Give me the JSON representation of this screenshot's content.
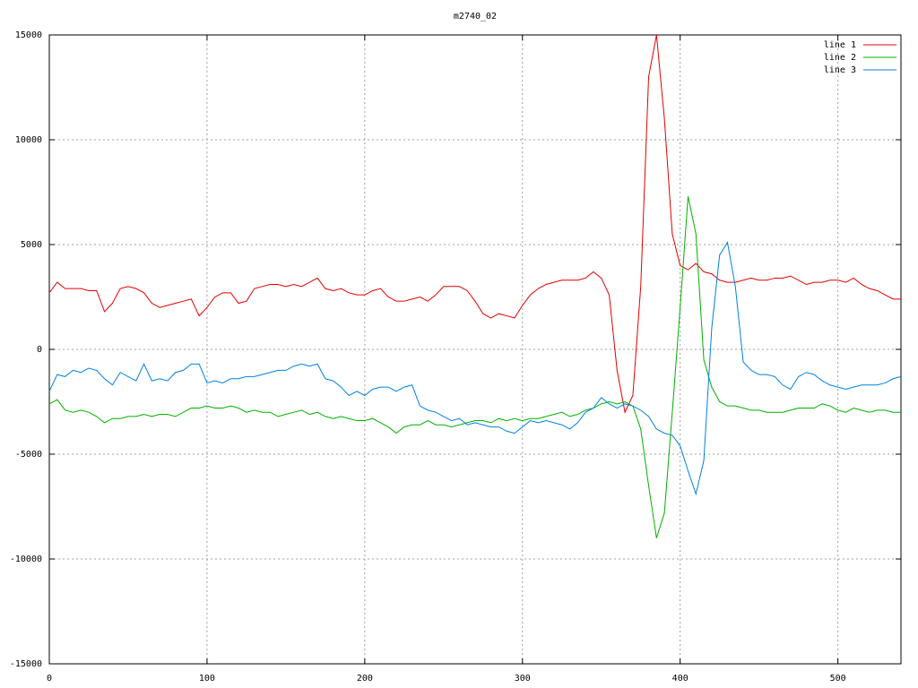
{
  "chart_data": {
    "type": "line",
    "title": "m2740_02",
    "x": [
      0,
      5,
      10,
      15,
      20,
      25,
      30,
      35,
      40,
      45,
      50,
      55,
      60,
      65,
      70,
      75,
      80,
      85,
      90,
      95,
      100,
      105,
      110,
      115,
      120,
      125,
      130,
      135,
      140,
      145,
      150,
      155,
      160,
      165,
      170,
      175,
      180,
      185,
      190,
      195,
      200,
      205,
      210,
      215,
      220,
      225,
      230,
      235,
      240,
      245,
      250,
      255,
      260,
      265,
      270,
      275,
      280,
      285,
      290,
      295,
      300,
      305,
      310,
      315,
      320,
      325,
      330,
      335,
      340,
      345,
      350,
      355,
      360,
      365,
      370,
      375,
      380,
      385,
      390,
      395,
      400,
      405,
      410,
      415,
      420,
      425,
      430,
      435,
      440,
      445,
      450,
      455,
      460,
      465,
      470,
      475,
      480,
      485,
      490,
      495,
      500,
      505,
      510,
      515,
      520,
      525,
      530,
      535,
      540
    ],
    "series": [
      {
        "name": "line 1",
        "color": "#e00000",
        "values": [
          2700,
          3200,
          2900,
          2900,
          2900,
          2800,
          2800,
          1800,
          2200,
          2900,
          3000,
          2900,
          2700,
          2200,
          2000,
          2100,
          2200,
          2300,
          2400,
          1600,
          2000,
          2500,
          2700,
          2700,
          2200,
          2300,
          2900,
          3000,
          3100,
          3100,
          3000,
          3100,
          3000,
          3200,
          3400,
          2900,
          2800,
          2900,
          2700,
          2600,
          2600,
          2800,
          2900,
          2500,
          2300,
          2300,
          2400,
          2500,
          2300,
          2600,
          3000,
          3000,
          3000,
          2800,
          2300,
          1700,
          1500,
          1700,
          1600,
          1500,
          2100,
          2600,
          2900,
          3100,
          3200,
          3300,
          3300,
          3300,
          3400,
          3700,
          3400,
          2600,
          -1000,
          -3000,
          -2200,
          3000,
          13000,
          15000,
          11000,
          5500,
          4000,
          3800,
          4100,
          3700,
          3600,
          3300,
          3200,
          3200,
          3300,
          3400,
          3300,
          3300,
          3400,
          3400,
          3500,
          3300,
          3100,
          3200,
          3200,
          3300,
          3300,
          3200,
          3400,
          3100,
          2900,
          2800,
          2600,
          2400,
          2400
        ]
      },
      {
        "name": "line 2",
        "color": "#00b000",
        "values": [
          -2600,
          -2400,
          -2900,
          -3000,
          -2900,
          -3000,
          -3200,
          -3500,
          -3300,
          -3300,
          -3200,
          -3200,
          -3100,
          -3200,
          -3100,
          -3100,
          -3200,
          -3000,
          -2800,
          -2800,
          -2700,
          -2800,
          -2800,
          -2700,
          -2800,
          -3000,
          -2900,
          -3000,
          -3000,
          -3200,
          -3100,
          -3000,
          -2900,
          -3100,
          -3000,
          -3200,
          -3300,
          -3200,
          -3300,
          -3400,
          -3400,
          -3300,
          -3500,
          -3700,
          -4000,
          -3700,
          -3600,
          -3600,
          -3400,
          -3600,
          -3600,
          -3700,
          -3600,
          -3500,
          -3400,
          -3400,
          -3500,
          -3300,
          -3400,
          -3300,
          -3400,
          -3300,
          -3300,
          -3200,
          -3100,
          -3000,
          -3200,
          -3100,
          -2900,
          -2800,
          -2600,
          -2500,
          -2600,
          -2500,
          -2700,
          -3800,
          -6500,
          -9000,
          -7800,
          -3000,
          2000,
          7300,
          5500,
          -500,
          -1800,
          -2500,
          -2700,
          -2700,
          -2800,
          -2900,
          -2900,
          -3000,
          -3000,
          -3000,
          -2900,
          -2800,
          -2800,
          -2800,
          -2600,
          -2700,
          -2900,
          -3000,
          -2800,
          -2900,
          -3000,
          -2900,
          -2900,
          -3000,
          -3000
        ]
      },
      {
        "name": "line 3",
        "color": "#0080e0",
        "values": [
          -2000,
          -1200,
          -1300,
          -1000,
          -1100,
          -900,
          -1000,
          -1400,
          -1700,
          -1100,
          -1300,
          -1500,
          -700,
          -1500,
          -1400,
          -1500,
          -1100,
          -1000,
          -700,
          -700,
          -1600,
          -1500,
          -1600,
          -1400,
          -1400,
          -1300,
          -1300,
          -1200,
          -1100,
          -1000,
          -1000,
          -800,
          -700,
          -800,
          -700,
          -1400,
          -1500,
          -1800,
          -2200,
          -2000,
          -2200,
          -1900,
          -1800,
          -1800,
          -2000,
          -1800,
          -1700,
          -2700,
          -2900,
          -3000,
          -3200,
          -3400,
          -3300,
          -3600,
          -3500,
          -3600,
          -3700,
          -3700,
          -3900,
          -4000,
          -3700,
          -3400,
          -3500,
          -3400,
          -3500,
          -3600,
          -3800,
          -3500,
          -3000,
          -2800,
          -2300,
          -2600,
          -2800,
          -2600,
          -2700,
          -2900,
          -3200,
          -3800,
          -4000,
          -4100,
          -4600,
          -5800,
          -6900,
          -5300,
          1000,
          4500,
          5100,
          3000,
          -600,
          -1000,
          -1200,
          -1200,
          -1300,
          -1700,
          -1900,
          -1300,
          -1100,
          -1200,
          -1500,
          -1700,
          -1800,
          -1900,
          -1800,
          -1700,
          -1700,
          -1700,
          -1600,
          -1400,
          -1300
        ]
      }
    ],
    "xlim": [
      0,
      540
    ],
    "ylim": [
      -15000,
      15000
    ],
    "xticks": [
      0,
      100,
      200,
      300,
      400,
      500
    ],
    "yticks": [
      -15000,
      -10000,
      -5000,
      0,
      5000,
      10000,
      15000
    ],
    "grid": true,
    "legend": "top-right"
  }
}
